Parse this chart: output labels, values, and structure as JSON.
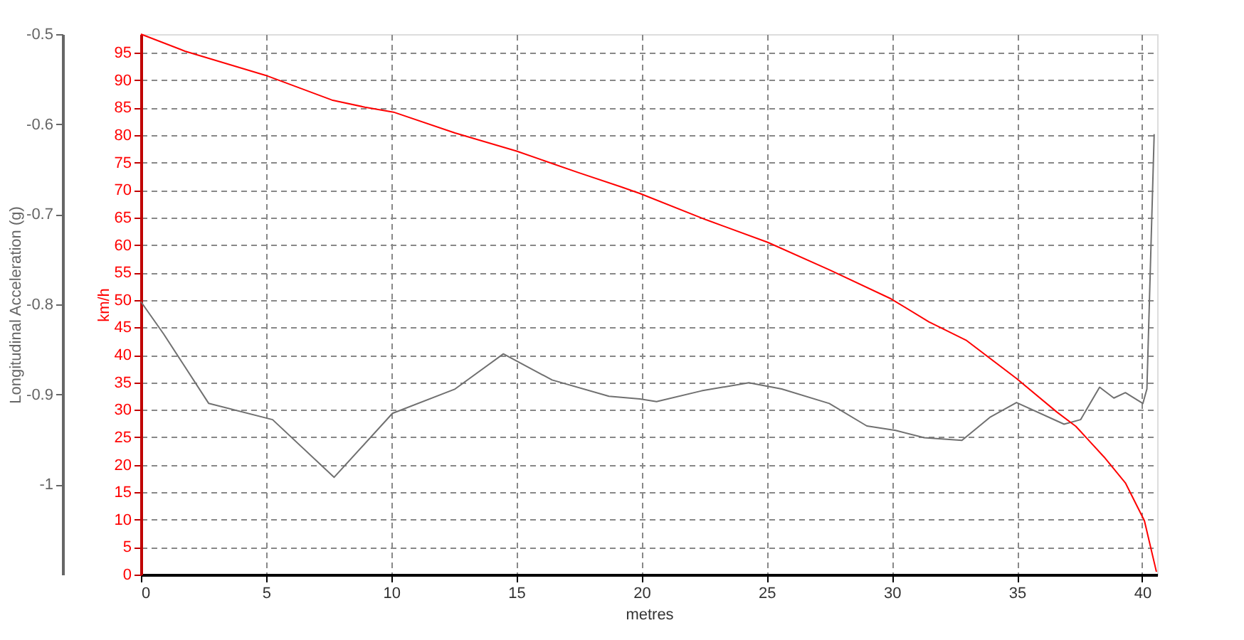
{
  "chart_data": {
    "type": "line",
    "xlabel": "metres",
    "ylabel": "Longitudinal Acceleration (g)",
    "y2label": "km/h",
    "xlim": [
      0,
      40.6
    ],
    "xticks": [
      0,
      5,
      10,
      15,
      20,
      25,
      30,
      35,
      40
    ],
    "ylim": [
      -1.1,
      -0.5
    ],
    "yticks": [
      -0.5,
      -0.6,
      -0.7,
      -0.8,
      -0.9,
      -1
    ],
    "y2lim": [
      0,
      98.4
    ],
    "y2ticks": [
      0,
      5,
      10,
      15,
      20,
      25,
      30,
      35,
      40,
      45,
      50,
      55,
      60,
      65,
      70,
      75,
      80,
      85,
      90,
      95
    ],
    "grid": true,
    "marker": "none",
    "series": [
      {
        "axis": "y",
        "color": "#707070",
        "x": [
          0,
          0.91,
          2.71,
          5.26,
          7.72,
          10.05,
          12.55,
          14.48,
          16.43,
          18.7,
          19.93,
          20.6,
          22.4,
          24.29,
          25.6,
          27.5,
          29.0,
          30.15,
          31.29,
          32.8,
          33.94,
          34.98,
          36.88,
          37.54,
          38.3,
          38.87,
          39.33,
          40.03,
          40.19,
          40.48
        ],
        "values": [
          -0.797,
          -0.833,
          -0.91,
          -0.928,
          -0.992,
          -0.921,
          -0.894,
          -0.855,
          -0.884,
          -0.902,
          -0.905,
          -0.908,
          -0.896,
          -0.887,
          -0.894,
          -0.91,
          -0.935,
          -0.94,
          -0.948,
          -0.951,
          -0.925,
          -0.909,
          -0.933,
          -0.928,
          -0.892,
          -0.904,
          -0.898,
          -0.91,
          -0.894,
          -0.611
        ]
      },
      {
        "axis": "y2",
        "color": "#ff0000",
        "x": [
          0,
          1.76,
          4.98,
          7.63,
          8.95,
          10.09,
          12.55,
          15.01,
          17.47,
          19.18,
          19.93,
          22.58,
          25.04,
          27.5,
          29.97,
          31.48,
          32.99,
          34.98,
          36.59,
          37.35,
          38.48,
          39.33,
          40.09,
          40.57
        ],
        "values": [
          98.4,
          95.3,
          90.9,
          86.4,
          85.1,
          84.2,
          80.4,
          77.1,
          73.2,
          70.6,
          69.4,
          64.6,
          60.5,
          55.5,
          50.2,
          46.0,
          42.6,
          35.7,
          29.6,
          27.0,
          21.4,
          16.7,
          9.8,
          0.5
        ]
      }
    ]
  }
}
